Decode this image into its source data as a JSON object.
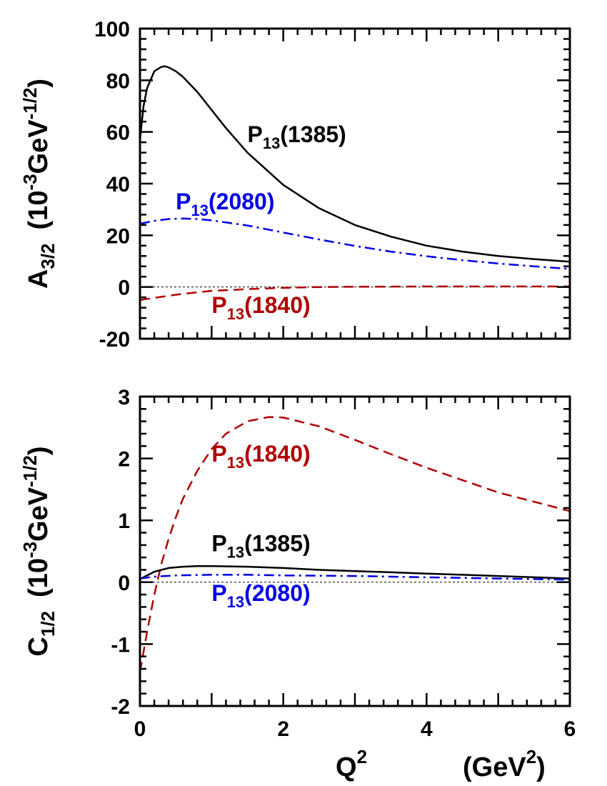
{
  "chart_data": [
    {
      "type": "line",
      "ylabel": {
        "main": "A",
        "sub": "3/2",
        "unit_pre": "(10",
        "unit_exp": "-3",
        "unit_mid": "GeV",
        "unit_exp2": "-1/2",
        "unit_post": ")"
      },
      "xlim": [
        0,
        6
      ],
      "ylim": [
        -20,
        100
      ],
      "yticks": [
        "-20",
        "0",
        "20",
        "40",
        "60",
        "80",
        "100"
      ],
      "zero_line": true,
      "series": [
        {
          "name": "P13(1385)",
          "label_main": "P",
          "label_sub": "13",
          "label_rest": "(1385)",
          "color": "#000000",
          "style": "solid",
          "x": [
            0,
            0.05,
            0.1,
            0.2,
            0.3,
            0.35,
            0.4,
            0.5,
            0.6,
            0.8,
            1.0,
            1.2,
            1.5,
            2.0,
            2.5,
            3.0,
            3.5,
            4.0,
            4.5,
            5.0,
            5.5,
            6.0
          ],
          "y": [
            57,
            70,
            77,
            83.5,
            85.2,
            85.4,
            85,
            83.5,
            81.3,
            75.5,
            68.5,
            61.5,
            52,
            39.5,
            30.5,
            24,
            19.5,
            16,
            13.7,
            12,
            10.8,
            9.8
          ]
        },
        {
          "name": "P13(2080)",
          "label_main": "P",
          "label_sub": "13",
          "label_rest": "(2080)",
          "color": "#0000e6",
          "style": "dashdot",
          "x": [
            0,
            0.2,
            0.4,
            0.6,
            0.8,
            1.0,
            1.5,
            2.0,
            2.5,
            3.0,
            3.5,
            4.0,
            4.5,
            5.0,
            5.5,
            6.0
          ],
          "y": [
            24.5,
            25.6,
            26.3,
            26.5,
            26.3,
            25.8,
            23.8,
            21.1,
            18.4,
            15.9,
            13.7,
            11.9,
            10.4,
            9.1,
            8,
            7
          ]
        },
        {
          "name": "P13(1840)",
          "label_main": "P",
          "label_sub": "13",
          "label_rest": "(1840)",
          "color": "#b00000",
          "style": "dashed",
          "x": [
            0,
            0.25,
            0.5,
            0.75,
            1.0,
            1.5,
            2.0,
            2.5,
            3.0,
            4.0,
            5.0,
            6.0
          ],
          "y": [
            -5,
            -4,
            -3,
            -2.2,
            -1.5,
            -0.8,
            -0.3,
            0,
            0.1,
            0.2,
            0.2,
            0.2
          ]
        }
      ],
      "labels": [
        {
          "series": 0,
          "x": 1.5,
          "y": 56,
          "anchor": "start"
        },
        {
          "series": 1,
          "x": 0.5,
          "y": 30,
          "anchor": "start"
        },
        {
          "series": 2,
          "x": 1.0,
          "y": -10,
          "anchor": "start"
        }
      ]
    },
    {
      "type": "line",
      "ylabel": {
        "main": "C",
        "sub": "1/2",
        "unit_pre": "(10",
        "unit_exp": "-3",
        "unit_mid": "GeV",
        "unit_exp2": "-1/2",
        "unit_post": ")"
      },
      "xlabel": {
        "main": "Q",
        "exp": "2",
        "unit_pre": "(GeV",
        "unit_exp": "2",
        "unit_post": ")"
      },
      "xlim": [
        0,
        6
      ],
      "ylim": [
        -2,
        3
      ],
      "xticks": [
        "0",
        "2",
        "4",
        "6"
      ],
      "yticks": [
        "-2",
        "-1",
        "0",
        "1",
        "2",
        "3"
      ],
      "zero_line": true,
      "series": [
        {
          "name": "P13(1840)",
          "label_main": "P",
          "label_sub": "13",
          "label_rest": "(1840)",
          "color": "#b00000",
          "style": "dashed",
          "x": [
            0,
            0.1,
            0.2,
            0.3,
            0.4,
            0.5,
            0.6,
            0.8,
            1.0,
            1.2,
            1.5,
            1.8,
            2.0,
            2.5,
            3.0,
            3.5,
            4.0,
            4.5,
            5.0,
            5.5,
            6.0
          ],
          "y": [
            -1.45,
            -0.8,
            -0.2,
            0.3,
            0.7,
            1.05,
            1.35,
            1.8,
            2.15,
            2.4,
            2.6,
            2.67,
            2.66,
            2.52,
            2.3,
            2.07,
            1.85,
            1.65,
            1.45,
            1.3,
            1.15
          ]
        },
        {
          "name": "P13(1385)",
          "label_main": "P",
          "label_sub": "13",
          "label_rest": "(1385)",
          "color": "#000000",
          "style": "solid",
          "x": [
            0,
            0.2,
            0.4,
            0.6,
            0.8,
            1.0,
            1.5,
            2.0,
            2.5,
            3.0,
            3.5,
            4.0,
            4.5,
            5.0,
            5.5,
            6.0
          ],
          "y": [
            0.05,
            0.17,
            0.23,
            0.25,
            0.26,
            0.26,
            0.25,
            0.23,
            0.2,
            0.18,
            0.16,
            0.14,
            0.12,
            0.1,
            0.08,
            0.06
          ]
        },
        {
          "name": "P13(2080)",
          "label_main": "P",
          "label_sub": "13",
          "label_rest": "(2080)",
          "color": "#0000e6",
          "style": "dashdot",
          "x": [
            0,
            0.2,
            0.5,
            1.0,
            1.5,
            2.0,
            3.0,
            4.0,
            5.0,
            6.0
          ],
          "y": [
            0.06,
            0.09,
            0.11,
            0.12,
            0.12,
            0.11,
            0.1,
            0.08,
            0.06,
            0.04
          ]
        }
      ],
      "labels": [
        {
          "series": 0,
          "x": 1.0,
          "y": 1.95,
          "anchor": "start"
        },
        {
          "series": 1,
          "x": 1.0,
          "y": 0.5,
          "anchor": "start"
        },
        {
          "series": 2,
          "x": 1.0,
          "y": -0.3,
          "anchor": "start"
        }
      ]
    }
  ]
}
